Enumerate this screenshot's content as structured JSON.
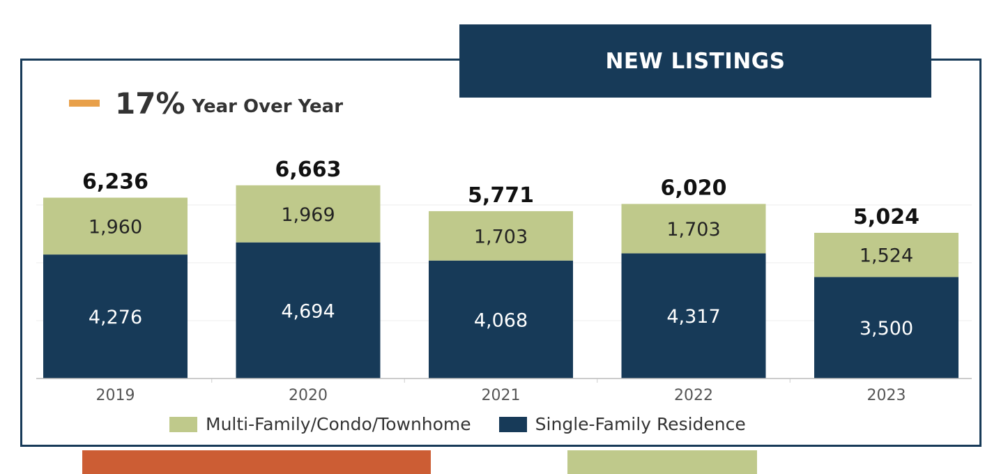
{
  "header": {
    "title": "NEW LISTINGS"
  },
  "yoy": {
    "percent": "17%",
    "label": "Year Over Year",
    "indicator_color": "#e8a04a"
  },
  "colors": {
    "navy": "#173a58",
    "green": "#bfc98b",
    "orange": "#cc5d34"
  },
  "chart_data": {
    "type": "bar",
    "stacked": true,
    "categories": [
      "2019",
      "2020",
      "2021",
      "2022",
      "2023"
    ],
    "series": [
      {
        "name": "Single-Family Residence",
        "color": "#173a58",
        "values": [
          4276,
          4694,
          4068,
          4317,
          3500
        ]
      },
      {
        "name": "Multi-Family/Condo/Townhome",
        "color": "#bfc98b",
        "values": [
          1960,
          1969,
          1703,
          1703,
          1524
        ]
      }
    ],
    "totals": [
      6236,
      6663,
      5771,
      6020,
      5024
    ],
    "legend": [
      "Multi-Family/Condo/Townhome",
      "Single-Family Residence"
    ],
    "legend_position": "bottom",
    "grid": true
  }
}
